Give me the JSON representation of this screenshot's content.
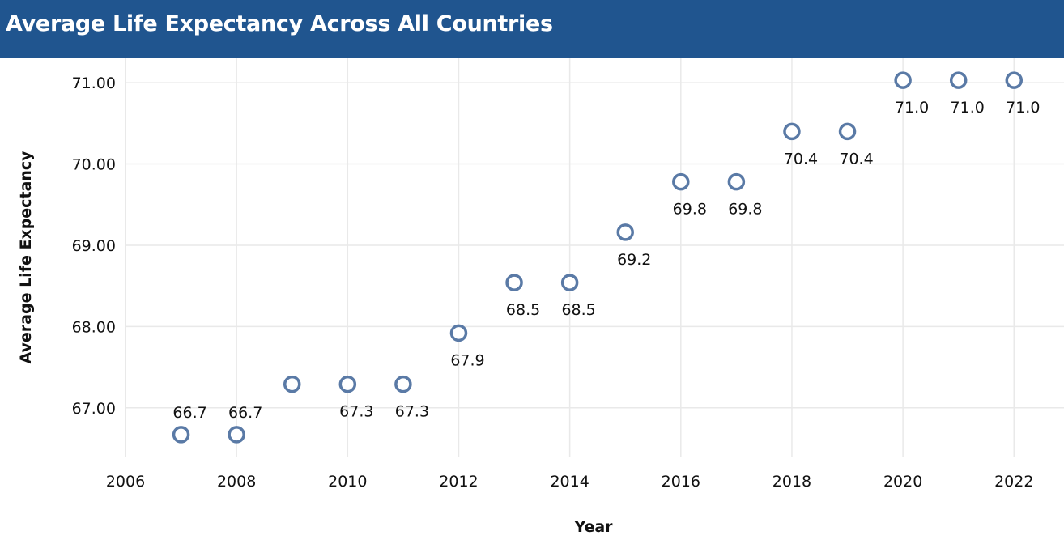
{
  "title": "Average Life Expectancy Across All Countries",
  "colors": {
    "header_bg": "#20558f",
    "header_text": "#ffffff",
    "marker": "#5a7aa6",
    "grid": "#e9e9e9",
    "text": "#111111"
  },
  "chart_data": {
    "type": "scatter",
    "marker": "hollow-circle",
    "xlabel": "Year",
    "ylabel": "Average Life Expectancy",
    "xlim": [
      2006,
      2022.9
    ],
    "ylim": [
      66.4,
      71.3
    ],
    "x_ticks": [
      2006,
      2008,
      2010,
      2012,
      2014,
      2016,
      2018,
      2020,
      2022
    ],
    "y_ticks": [
      67,
      68,
      69,
      70,
      71
    ],
    "y_tick_labels": [
      "67.00",
      "68.00",
      "69.00",
      "70.00",
      "71.00"
    ],
    "grid": true,
    "points": [
      {
        "x": 2007,
        "y": 66.67,
        "label": "66.7",
        "label_position": "above"
      },
      {
        "x": 2008,
        "y": 66.67,
        "label": "66.7",
        "label_position": "above"
      },
      {
        "x": 2009,
        "y": 67.29,
        "label": "",
        "label_position": "none"
      },
      {
        "x": 2010,
        "y": 67.29,
        "label": "67.3",
        "label_position": "below"
      },
      {
        "x": 2011,
        "y": 67.29,
        "label": "67.3",
        "label_position": "below"
      },
      {
        "x": 2012,
        "y": 67.92,
        "label": "67.9",
        "label_position": "below"
      },
      {
        "x": 2013,
        "y": 68.54,
        "label": "68.5",
        "label_position": "below"
      },
      {
        "x": 2014,
        "y": 68.54,
        "label": "68.5",
        "label_position": "below"
      },
      {
        "x": 2015,
        "y": 69.16,
        "label": "69.2",
        "label_position": "below"
      },
      {
        "x": 2016,
        "y": 69.78,
        "label": "69.8",
        "label_position": "below"
      },
      {
        "x": 2017,
        "y": 69.78,
        "label": "69.8",
        "label_position": "below"
      },
      {
        "x": 2018,
        "y": 70.4,
        "label": "70.4",
        "label_position": "below"
      },
      {
        "x": 2019,
        "y": 70.4,
        "label": "70.4",
        "label_position": "below"
      },
      {
        "x": 2020,
        "y": 71.03,
        "label": "71.0",
        "label_position": "below"
      },
      {
        "x": 2021,
        "y": 71.03,
        "label": "71.0",
        "label_position": "below"
      },
      {
        "x": 2022,
        "y": 71.03,
        "label": "71.0",
        "label_position": "below"
      }
    ]
  }
}
